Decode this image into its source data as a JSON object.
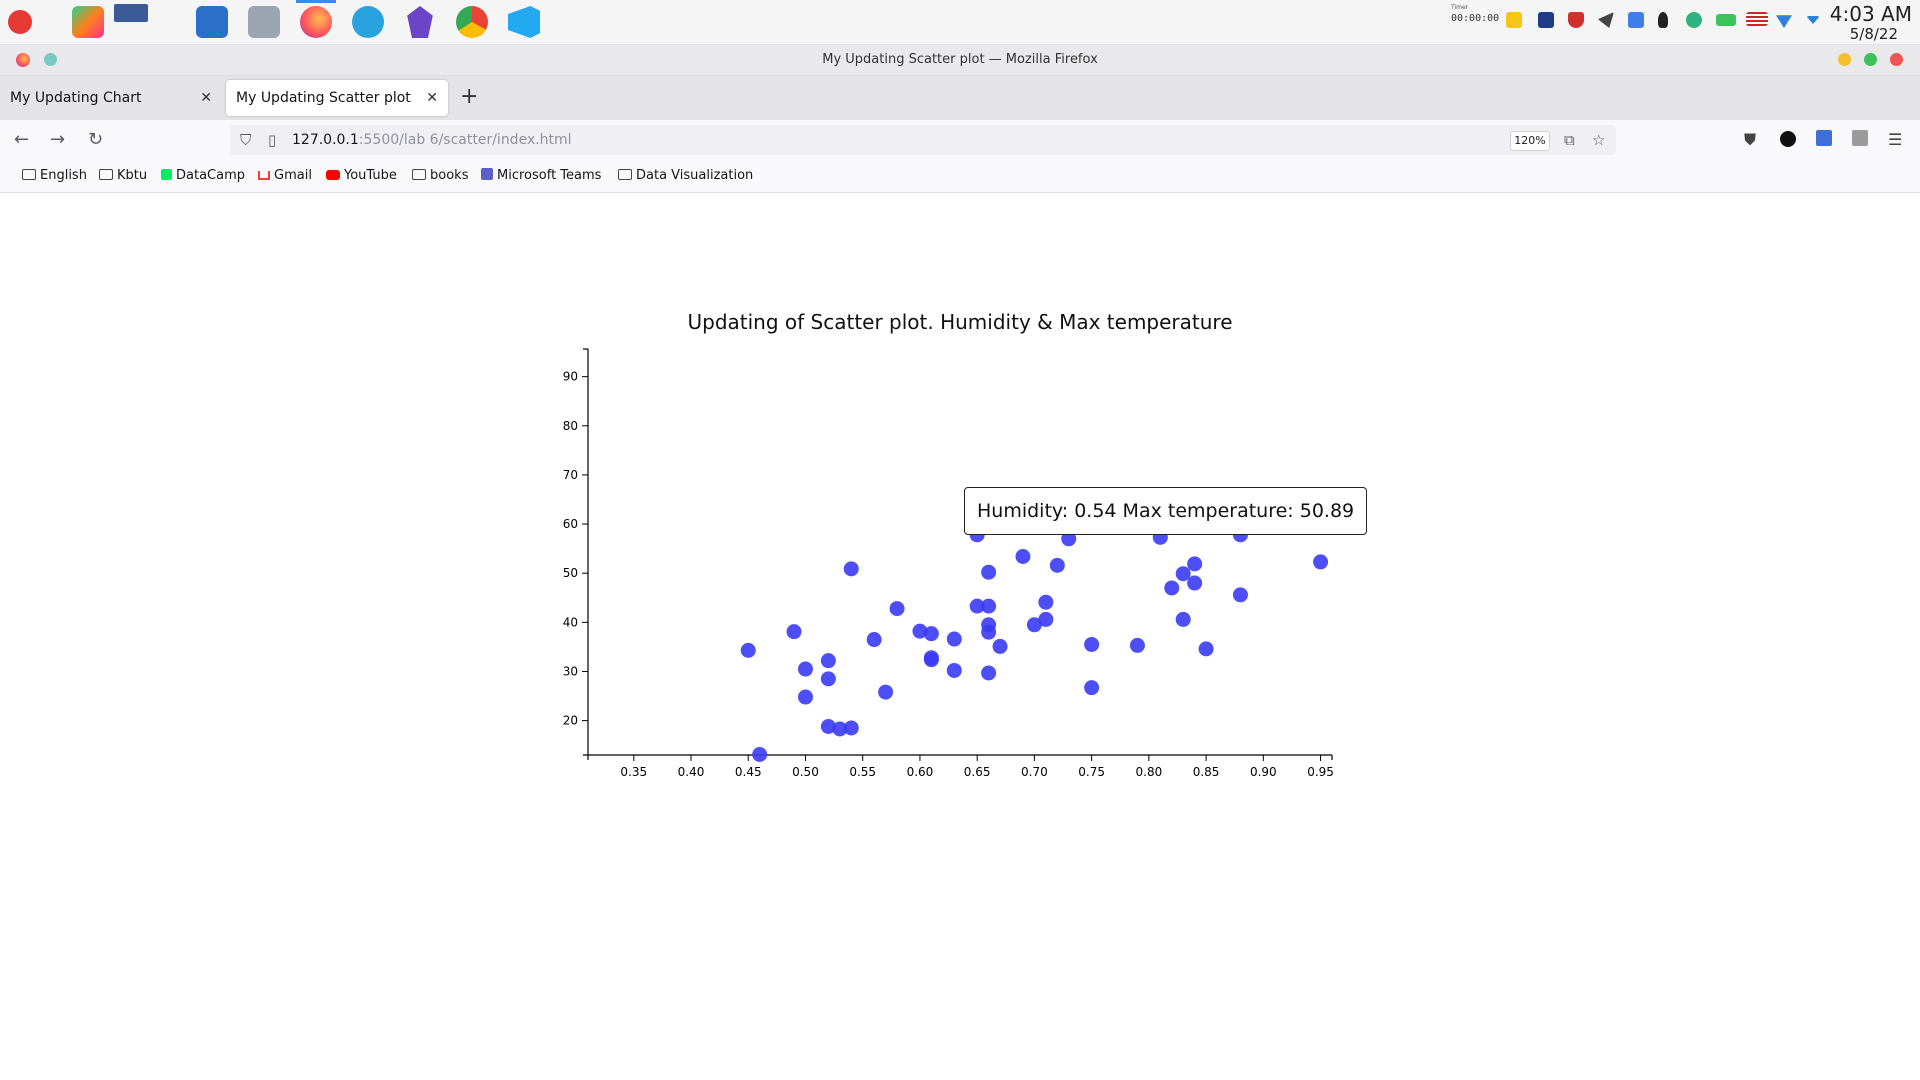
{
  "system_panel": {
    "timer_label": "Timer",
    "timer_value": "00:00:00",
    "clock_time": "4:03 AM",
    "clock_date": "5/8/22"
  },
  "window": {
    "title": "My Updating Scatter plot — Mozilla Firefox"
  },
  "tabs": [
    {
      "label": "My Updating Chart",
      "active": false
    },
    {
      "label": "My Updating Scatter plot",
      "active": true
    }
  ],
  "navbar": {
    "url_host": "127.0.0.1",
    "url_rest": ":5500/lab 6/scatter/index.html",
    "zoom": "120%"
  },
  "bookmarks": [
    {
      "label": "English",
      "icon": "folder-icon"
    },
    {
      "label": "Kbtu",
      "icon": "folder-icon"
    },
    {
      "label": "DataCamp",
      "icon": "datacamp-icon"
    },
    {
      "label": "Gmail",
      "icon": "gmail-icon"
    },
    {
      "label": "YouTube",
      "icon": "youtube-icon"
    },
    {
      "label": "books",
      "icon": "folder-icon"
    },
    {
      "label": "Microsoft Teams",
      "icon": "teams-icon"
    },
    {
      "label": "Data Visualization",
      "icon": "folder-icon"
    }
  ],
  "tooltip": {
    "text": "Humidity: 0.54 Max temperature: 50.89"
  },
  "colors": {
    "point": "#3b3bf5",
    "point_highlight": "#1010e0",
    "accent_tab": "#0060df"
  },
  "chart_data": {
    "type": "scatter",
    "title": "Updating of Scatter plot. Humidity & Max temperature",
    "xlabel": "",
    "ylabel": "",
    "xlim": [
      0.31,
      0.96
    ],
    "ylim": [
      13,
      94
    ],
    "x_ticks": [
      "0.35",
      "0.40",
      "0.45",
      "0.50",
      "0.55",
      "0.60",
      "0.65",
      "0.70",
      "0.75",
      "0.80",
      "0.85",
      "0.90",
      "0.95"
    ],
    "y_ticks": [
      "20",
      "30",
      "40",
      "50",
      "60",
      "70",
      "80",
      "90"
    ],
    "grid": false,
    "points": [
      {
        "x": 0.45,
        "y": 34.3
      },
      {
        "x": 0.46,
        "y": 13.1
      },
      {
        "x": 0.49,
        "y": 38.1
      },
      {
        "x": 0.5,
        "y": 30.5
      },
      {
        "x": 0.5,
        "y": 24.8
      },
      {
        "x": 0.52,
        "y": 32.2
      },
      {
        "x": 0.52,
        "y": 28.5
      },
      {
        "x": 0.52,
        "y": 18.8
      },
      {
        "x": 0.53,
        "y": 18.3
      },
      {
        "x": 0.54,
        "y": 18.5
      },
      {
        "x": 0.54,
        "y": 50.89
      },
      {
        "x": 0.56,
        "y": 36.5
      },
      {
        "x": 0.57,
        "y": 25.8
      },
      {
        "x": 0.58,
        "y": 42.8
      },
      {
        "x": 0.6,
        "y": 38.2
      },
      {
        "x": 0.61,
        "y": 37.7
      },
      {
        "x": 0.61,
        "y": 32.4
      },
      {
        "x": 0.61,
        "y": 32.8
      },
      {
        "x": 0.63,
        "y": 36.6
      },
      {
        "x": 0.63,
        "y": 30.2
      },
      {
        "x": 0.65,
        "y": 57.8
      },
      {
        "x": 0.65,
        "y": 43.3
      },
      {
        "x": 0.66,
        "y": 50.2
      },
      {
        "x": 0.66,
        "y": 43.3
      },
      {
        "x": 0.66,
        "y": 39.5
      },
      {
        "x": 0.66,
        "y": 38.0
      },
      {
        "x": 0.66,
        "y": 29.7
      },
      {
        "x": 0.67,
        "y": 35.1
      },
      {
        "x": 0.69,
        "y": 53.4
      },
      {
        "x": 0.7,
        "y": 39.5
      },
      {
        "x": 0.71,
        "y": 44.1
      },
      {
        "x": 0.71,
        "y": 40.6
      },
      {
        "x": 0.72,
        "y": 51.6
      },
      {
        "x": 0.73,
        "y": 57.0
      },
      {
        "x": 0.75,
        "y": 35.5
      },
      {
        "x": 0.75,
        "y": 26.7
      },
      {
        "x": 0.79,
        "y": 35.3
      },
      {
        "x": 0.81,
        "y": 57.3
      },
      {
        "x": 0.82,
        "y": 47.0
      },
      {
        "x": 0.83,
        "y": 49.9
      },
      {
        "x": 0.83,
        "y": 40.6
      },
      {
        "x": 0.84,
        "y": 51.9
      },
      {
        "x": 0.84,
        "y": 48.0
      },
      {
        "x": 0.85,
        "y": 34.6
      },
      {
        "x": 0.88,
        "y": 57.8
      },
      {
        "x": 0.88,
        "y": 45.6
      },
      {
        "x": 0.95,
        "y": 52.3
      }
    ]
  }
}
